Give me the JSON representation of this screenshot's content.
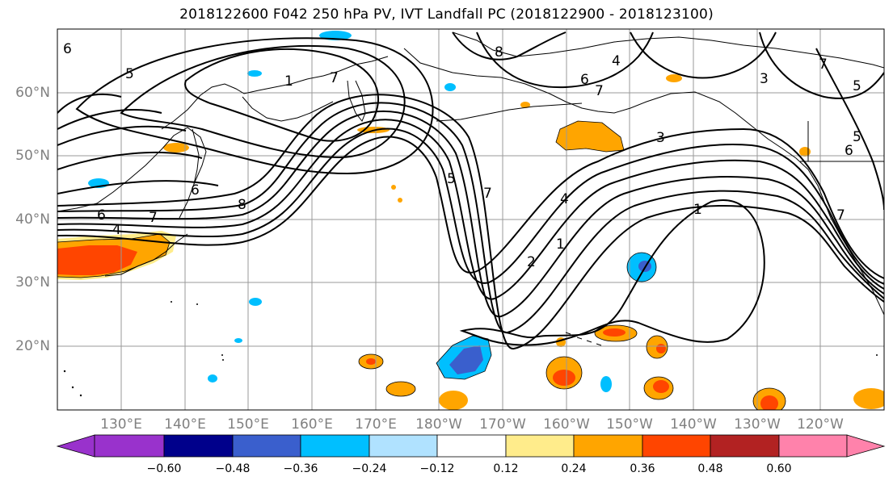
{
  "title": "2018122600 F042 250 hPa PV, IVT Landfall PC (2018122900 - 2018123100)",
  "map": {
    "projection": "PlateCarree",
    "extent_lon": [
      120,
      250
    ],
    "extent_lat": [
      10,
      70
    ],
    "grid": true,
    "lat_labels": [
      "20°N",
      "30°N",
      "40°N",
      "50°N",
      "60°N"
    ],
    "lon_labels": [
      "130°E",
      "140°E",
      "150°E",
      "160°E",
      "170°E",
      "180°W",
      "170°W",
      "160°W",
      "150°W",
      "140°W",
      "130°W",
      "120°W"
    ],
    "pv_contour_labels": [
      "6",
      "5",
      "1",
      "7",
      "8",
      "4",
      "6",
      "7",
      "3",
      "3",
      "5",
      "6",
      "7",
      "6",
      "4",
      "7",
      "8",
      "5",
      "7",
      "4",
      "1",
      "2",
      "1",
      "7",
      "6",
      "5"
    ],
    "land_color": "#ffffff",
    "coastline_color": "#000000"
  },
  "colorbar": {
    "ticks": [
      "−0.60",
      "−0.48",
      "−0.36",
      "−0.24",
      "−0.12",
      "0.12",
      "0.24",
      "0.36",
      "0.48",
      "0.60"
    ],
    "colors": [
      "#9932cc",
      "#00008b",
      "#3a5fcd",
      "#00bfff",
      "#b0e2ff",
      "#ffffff",
      "#ffec8b",
      "#ffa500",
      "#ff4500",
      "#b22222",
      "#ff82ab"
    ],
    "extend": "both"
  }
}
